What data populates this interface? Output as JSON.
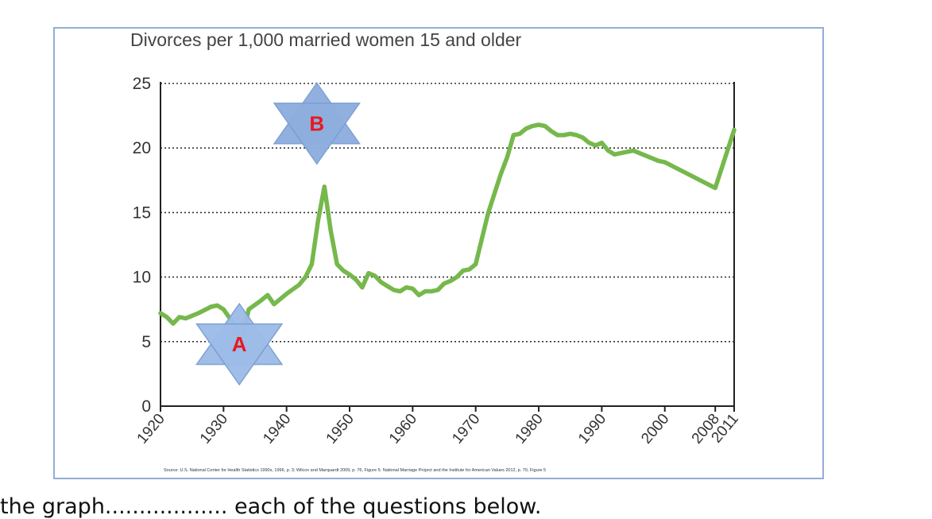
{
  "chart_data": {
    "type": "line",
    "title": "Divorces per 1,000 married women 15 and older",
    "xlabel": "",
    "ylabel": "",
    "xlim": [
      1920,
      2011
    ],
    "ylim": [
      0,
      25
    ],
    "y_ticks": [
      0,
      5,
      10,
      15,
      20,
      25
    ],
    "x_ticks": [
      {
        "value": 1920,
        "label": "1920"
      },
      {
        "value": 1930,
        "label": "1930"
      },
      {
        "value": 1940,
        "label": "1940"
      },
      {
        "value": 1950,
        "label": "1950"
      },
      {
        "value": 1960,
        "label": "1960"
      },
      {
        "value": 1970,
        "label": "1970"
      },
      {
        "value": 1980,
        "label": "1980"
      },
      {
        "value": 1990,
        "label": "1990"
      },
      {
        "value": 2000,
        "label": "2000"
      },
      {
        "value": 2008,
        "label": "2008"
      },
      {
        "value": 2011,
        "label": "2011"
      }
    ],
    "grid": true,
    "series": [
      {
        "color": "#76b84c",
        "x": [
          1920,
          1921,
          1922,
          1923,
          1924,
          1926,
          1928,
          1929,
          1930,
          1931,
          1932,
          1933,
          1934,
          1936,
          1937,
          1938,
          1940,
          1942,
          1943,
          1944,
          1945,
          1946,
          1947,
          1948,
          1949,
          1950,
          1951,
          1952,
          1953,
          1954,
          1955,
          1956,
          1957,
          1958,
          1959,
          1960,
          1961,
          1962,
          1963,
          1964,
          1965,
          1966,
          1967,
          1968,
          1969,
          1970,
          1971,
          1972,
          1973,
          1974,
          1975,
          1976,
          1977,
          1978,
          1979,
          1980,
          1981,
          1982,
          1983,
          1984,
          1985,
          1986,
          1987,
          1988,
          1989,
          1990,
          1991,
          1992,
          1993,
          1994,
          1995,
          1996,
          1997,
          1998,
          1999,
          2000,
          2008,
          2011
        ],
        "values": [
          7.2,
          6.9,
          6.4,
          6.9,
          6.8,
          7.2,
          7.7,
          7.8,
          7.5,
          6.8,
          6.0,
          5.4,
          7.5,
          8.2,
          8.6,
          7.9,
          8.7,
          9.4,
          10.0,
          11.0,
          14.4,
          17.0,
          13.6,
          11.0,
          10.5,
          10.2,
          9.8,
          9.2,
          10.3,
          10.1,
          9.6,
          9.3,
          9.0,
          8.9,
          9.2,
          9.1,
          8.6,
          8.9,
          8.9,
          9.0,
          9.5,
          9.7,
          10.0,
          10.5,
          10.6,
          11.0,
          13.0,
          15.0,
          16.5,
          18.0,
          19.3,
          21.0,
          21.1,
          21.5,
          21.7,
          21.8,
          21.7,
          21.3,
          21.0,
          21.0,
          21.1,
          21.0,
          20.8,
          20.4,
          20.2,
          20.4,
          19.8,
          19.5,
          19.6,
          19.7,
          19.8,
          19.6,
          19.4,
          19.2,
          19.0,
          18.9,
          16.9,
          21.4
        ]
      }
    ],
    "annotations": [
      {
        "label": "A",
        "x": 1932.5,
        "y": 4.8,
        "fill": "#9dbce8",
        "text_color": "#e8181e"
      },
      {
        "label": "B",
        "x": 1944.8,
        "y": 21.9,
        "fill": "#8eaede",
        "text_color": "#e8181e"
      }
    ],
    "source_note": "Source: U.S. National Center for Health Statistics 1990s, 1996, p. 3; Wilcox and Marquardt 2009, p. 76, Figure 5. National Marriage Project and the Institute for American Values 2012, p. 70, Figure 5"
  },
  "caption": "the graph.................. each of the questions below."
}
